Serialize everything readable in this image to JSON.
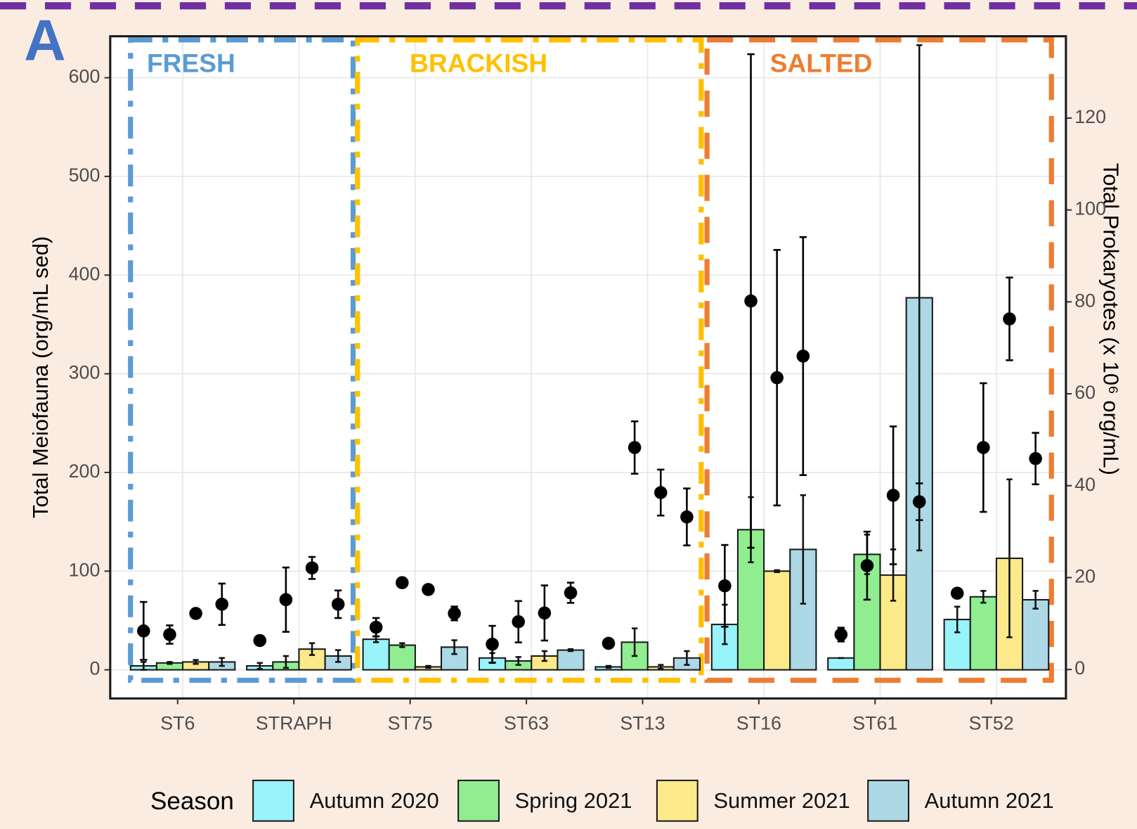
{
  "chart_data": {
    "type": "bar",
    "panel_label": "A",
    "ylabel": "Total Meiofauna (org/mL sed)",
    "y2label": "Total Prokaryotes (x 10⁶ org/mL)",
    "legend_title": "Season",
    "categories": [
      "ST6",
      "STRAPH",
      "ST75",
      "ST63",
      "ST13",
      "ST16",
      "ST61",
      "ST52"
    ],
    "series": [
      {
        "name": "Autumn 2020",
        "color": "#98f3fb",
        "values": [
          4,
          4,
          31,
          12,
          3,
          46,
          12,
          51
        ],
        "errors": [
          4,
          3,
          3,
          5,
          1,
          20,
          0,
          13
        ]
      },
      {
        "name": "Spring 2021",
        "color": "#90ee90",
        "values": [
          7,
          8,
          25,
          9,
          28,
          142,
          117,
          74
        ],
        "errors": [
          1,
          6,
          2,
          4,
          14,
          33,
          20,
          6
        ]
      },
      {
        "name": "Summer 2021",
        "color": "#fbe98a",
        "values": [
          8,
          21,
          3,
          14,
          3,
          100,
          96,
          113
        ],
        "errors": [
          2,
          6,
          1,
          5,
          2,
          1,
          26,
          80
        ]
      },
      {
        "name": "Autumn 2021",
        "color": "#add8e6",
        "values": [
          8,
          14,
          23,
          20,
          12,
          122,
          377,
          71
        ],
        "errors": [
          4,
          6,
          7,
          1,
          7,
          55,
          256,
          9
        ]
      }
    ],
    "overlay": {
      "type": "scatter",
      "axis": "y2",
      "color": "#000000",
      "series": [
        {
          "values": [
            8.4,
            6.3,
            9.2,
            5.5,
            5.7,
            18.2,
            7.6,
            16.6
          ],
          "errors": [
            6.3,
            0.5,
            2,
            4,
            0,
            8.9,
            1.5,
            0
          ]
        },
        {
          "values": [
            7.6,
            15.2,
            18.9,
            10.4,
            48.3,
            80.2,
            22.6,
            48.3
          ],
          "errors": [
            2,
            7,
            1,
            4.5,
            5.7,
            53.7,
            7.4,
            14
          ]
        },
        {
          "values": [
            12.2,
            22.1,
            17.4,
            12.3,
            38.5,
            63.5,
            37.9,
            76.3
          ],
          "errors": [
            1,
            2.4,
            1,
            6,
            5,
            27.8,
            15,
            9
          ]
        },
        {
          "values": [
            14.2,
            14.2,
            12.2,
            16.7,
            33.2,
            68.2,
            36.5,
            45.9
          ],
          "errors": [
            4.5,
            3,
            1.5,
            2.2,
            6.2,
            25.9,
            4,
            5.6
          ]
        }
      ]
    },
    "regions": [
      {
        "label": "FRESH",
        "color": "#5b9bd5"
      },
      {
        "label": "BRACKISH",
        "color": "#ffc000"
      },
      {
        "label": "SALTED",
        "color": "#ed7d31"
      }
    ],
    "ylim": [
      -29,
      642
    ],
    "yticks": [
      0,
      100,
      200,
      300,
      400,
      500,
      600
    ],
    "y2lim": [
      -6.3,
      137.8
    ],
    "y2ticks": [
      0,
      20,
      40,
      60,
      80,
      100,
      120
    ],
    "grid": true
  }
}
